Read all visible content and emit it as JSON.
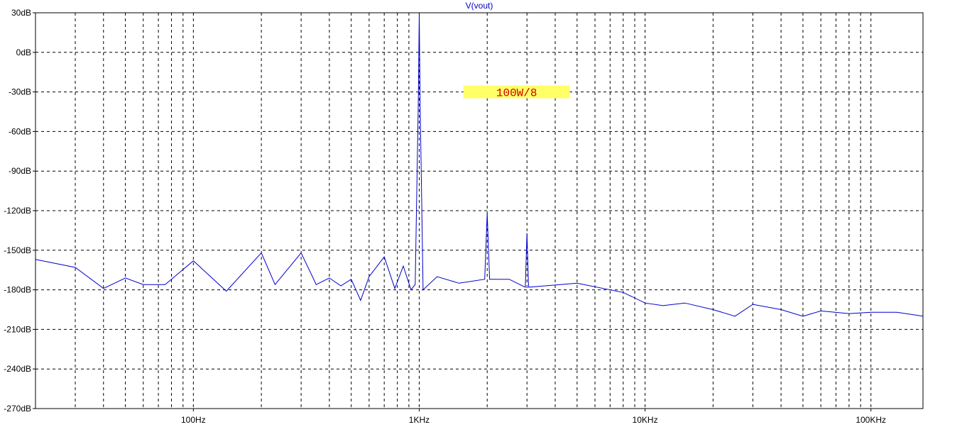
{
  "chart_data": {
    "type": "line",
    "title": "V(vout)",
    "xlabel": "",
    "ylabel": "",
    "x_scale": "log",
    "xlim": [
      20,
      170000
    ],
    "ylim": [
      -270,
      30
    ],
    "y_unit": "dB",
    "grid": true,
    "x_ticks": [
      {
        "value": 100,
        "label": "100Hz"
      },
      {
        "value": 1000,
        "label": "1KHz"
      },
      {
        "value": 10000,
        "label": "10KHz"
      },
      {
        "value": 100000,
        "label": "100KHz"
      }
    ],
    "y_ticks": [
      {
        "value": 30,
        "label": "30dB"
      },
      {
        "value": 0,
        "label": "0dB"
      },
      {
        "value": -30,
        "label": "-30dB"
      },
      {
        "value": -60,
        "label": "-60dB"
      },
      {
        "value": -90,
        "label": "-90dB"
      },
      {
        "value": -120,
        "label": "-120dB"
      },
      {
        "value": -150,
        "label": "-150dB"
      },
      {
        "value": -180,
        "label": "-180dB"
      },
      {
        "value": -210,
        "label": "-210dB"
      },
      {
        "value": -240,
        "label": "-240dB"
      },
      {
        "value": -270,
        "label": "-270dB"
      }
    ],
    "annotation": {
      "text": "100W/8",
      "x": 2700,
      "y": -30
    },
    "series": [
      {
        "color": "#0000cc",
        "points": [
          [
            20,
            -157
          ],
          [
            30,
            -163
          ],
          [
            40,
            -179
          ],
          [
            50,
            -171
          ],
          [
            60,
            -176
          ],
          [
            75,
            -176
          ],
          [
            100,
            -158
          ],
          [
            140,
            -181
          ],
          [
            200,
            -152
          ],
          [
            230,
            -176
          ],
          [
            300,
            -152
          ],
          [
            350,
            -176
          ],
          [
            400,
            -171
          ],
          [
            450,
            -177
          ],
          [
            500,
            -172
          ],
          [
            550,
            -188
          ],
          [
            600,
            -170
          ],
          [
            700,
            -155
          ],
          [
            780,
            -179
          ],
          [
            850,
            -162
          ],
          [
            920,
            -180
          ],
          [
            960,
            -176
          ],
          [
            990,
            -40
          ],
          [
            1000,
            28
          ],
          [
            1010,
            -40
          ],
          [
            1040,
            -180
          ],
          [
            1200,
            -170
          ],
          [
            1500,
            -175
          ],
          [
            1950,
            -172
          ],
          [
            2000,
            -122
          ],
          [
            2050,
            -172
          ],
          [
            2500,
            -172
          ],
          [
            2950,
            -178
          ],
          [
            3000,
            -137
          ],
          [
            3050,
            -178
          ],
          [
            5000,
            -175
          ],
          [
            8000,
            -182
          ],
          [
            10000,
            -190
          ],
          [
            12000,
            -192
          ],
          [
            15000,
            -190
          ],
          [
            20000,
            -195
          ],
          [
            25000,
            -200
          ],
          [
            30000,
            -191
          ],
          [
            40000,
            -195
          ],
          [
            50000,
            -200
          ],
          [
            60000,
            -196
          ],
          [
            80000,
            -198
          ],
          [
            100000,
            -197
          ],
          [
            130000,
            -197
          ],
          [
            170000,
            -200
          ]
        ]
      }
    ]
  }
}
